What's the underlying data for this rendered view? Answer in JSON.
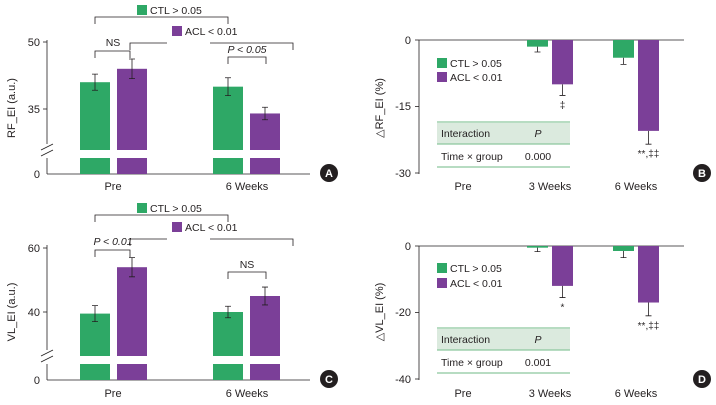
{
  "colors": {
    "ctl": "#2ea866",
    "acl": "#7b3f98",
    "axis": "#231f20",
    "table_bg": "#dbeade",
    "table_line": "#8cc79e",
    "badge": "#231f20"
  },
  "chart_data": [
    {
      "panel": "A",
      "type": "bar",
      "ylabel": "RF_EI (a.u.)",
      "categories": [
        "Pre",
        "6 Weeks"
      ],
      "yticks": [
        "50",
        "35",
        "0"
      ],
      "series": [
        {
          "name": "CTL",
          "values": [
            41,
            40
          ],
          "errors": [
            1.8,
            2.0
          ]
        },
        {
          "name": "ACL",
          "values": [
            44,
            34
          ],
          "errors": [
            2.2,
            1.4
          ]
        }
      ],
      "legend": [
        "CTL > 0.05",
        "ACL < 0.01"
      ],
      "annotations": [
        "NS",
        "P < 0.05"
      ]
    },
    {
      "panel": "B",
      "type": "bar",
      "ylabel": "△RF_EI (%)",
      "categories": [
        "Pre",
        "3 Weeks",
        "6 Weeks"
      ],
      "yticks": [
        "0",
        "-15",
        "-30"
      ],
      "ylim": [
        -30,
        0
      ],
      "series": [
        {
          "name": "CTL",
          "values": [
            null,
            -1.5,
            -4
          ],
          "errors": [
            null,
            1.2,
            1.5
          ]
        },
        {
          "name": "ACL",
          "values": [
            null,
            -10,
            -20.5
          ],
          "errors": [
            null,
            2.5,
            3
          ]
        }
      ],
      "legend": [
        "CTL > 0.05",
        "ACL < 0.01"
      ],
      "sig_marks": [
        "‡",
        "**,‡‡"
      ],
      "table": {
        "headers": [
          "Interaction",
          "P"
        ],
        "row": [
          "Time × group",
          "0.000"
        ]
      }
    },
    {
      "panel": "C",
      "type": "bar",
      "ylabel": "VL_EI (a.u.)",
      "categories": [
        "Pre",
        "6 Weeks"
      ],
      "yticks": [
        "60",
        "40",
        "0"
      ],
      "series": [
        {
          "name": "CTL",
          "values": [
            39.5,
            40
          ],
          "errors": [
            2.5,
            1.8
          ]
        },
        {
          "name": "ACL",
          "values": [
            54,
            45
          ],
          "errors": [
            3,
            2.8
          ]
        }
      ],
      "legend": [
        "CTL > 0.05",
        "ACL < 0.01"
      ],
      "annotations": [
        "P < 0.01",
        "NS"
      ]
    },
    {
      "panel": "D",
      "type": "bar",
      "ylabel": "△VL_EI (%)",
      "categories": [
        "Pre",
        "3 Weeks",
        "6 Weeks"
      ],
      "yticks": [
        "0",
        "-20",
        "-40"
      ],
      "ylim": [
        -40,
        0
      ],
      "series": [
        {
          "name": "CTL",
          "values": [
            null,
            -0.5,
            -1.5
          ],
          "errors": [
            null,
            1.2,
            2
          ]
        },
        {
          "name": "ACL",
          "values": [
            null,
            -12,
            -17
          ],
          "errors": [
            null,
            3.5,
            4
          ]
        }
      ],
      "legend": [
        "CTL > 0.05",
        "ACL < 0.01"
      ],
      "sig_marks": [
        "*",
        "**,‡‡"
      ],
      "table": {
        "headers": [
          "Interaction",
          "P"
        ],
        "row": [
          "Time × group",
          "0.001"
        ]
      }
    }
  ]
}
